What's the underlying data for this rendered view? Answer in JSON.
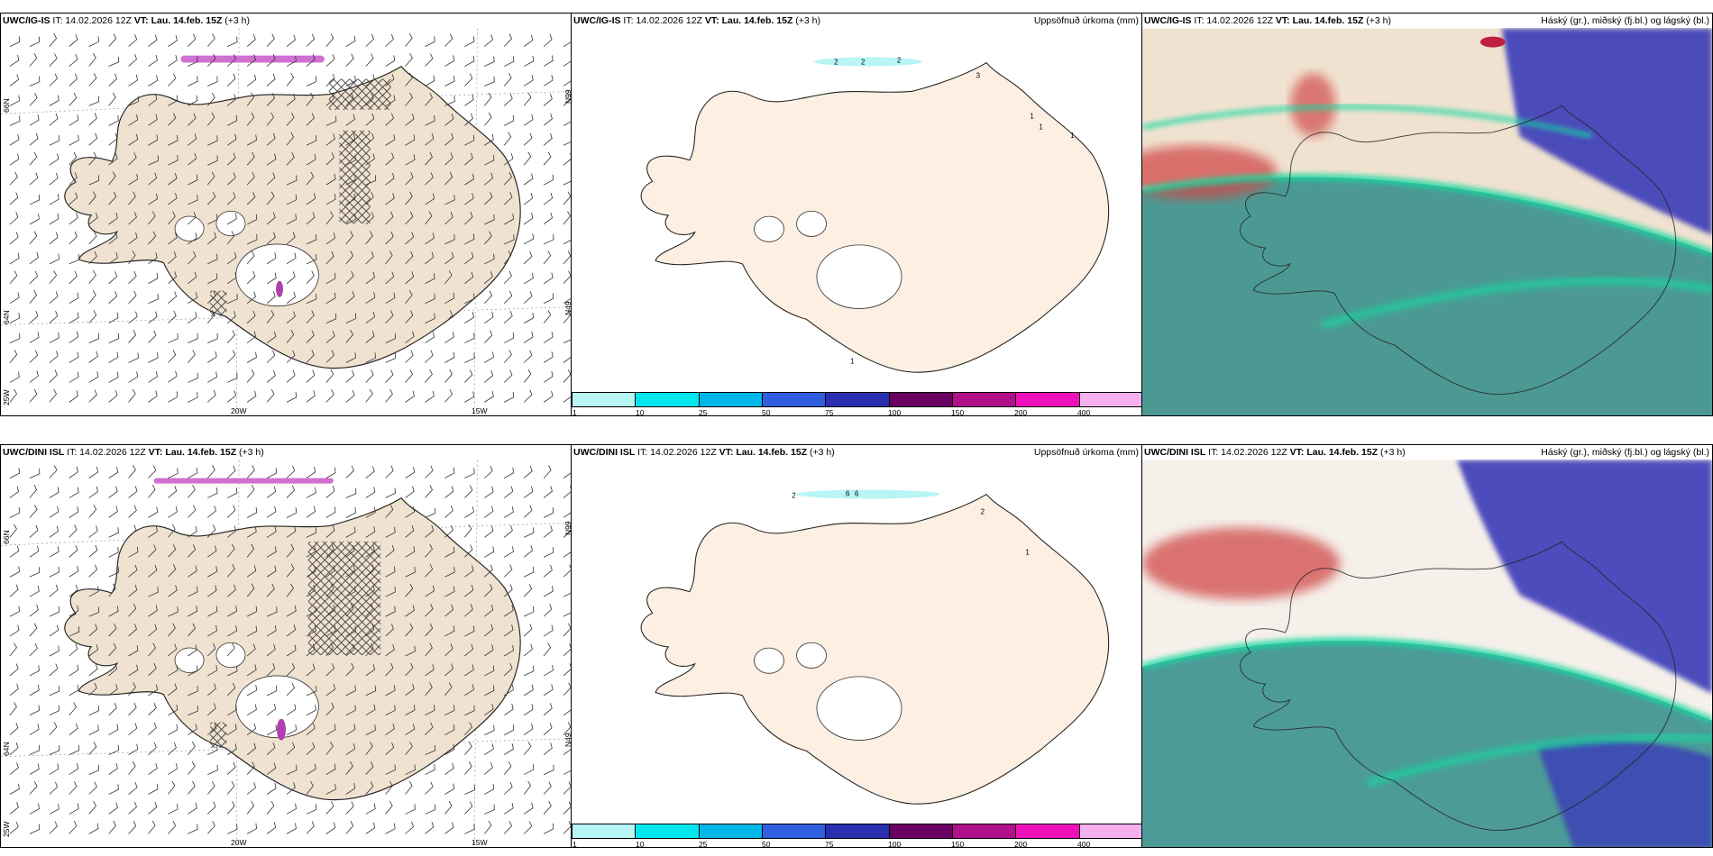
{
  "panels": [
    {
      "model": "UWC/IG-IS",
      "it": "IT: 14.02.2026 12Z",
      "vt": "VT: Lau. 14.feb. 15Z",
      "lead": "(+3 h)",
      "right_title": "",
      "lat_labels": [
        "66N",
        "64N"
      ],
      "lat_right_labels": [
        "N99",
        "N49"
      ],
      "lon_labels": [
        "20W",
        "15W"
      ],
      "lon_left_label": "25W"
    },
    {
      "model": "UWC/IG-IS",
      "it": "IT: 14.02.2026 12Z",
      "vt": "VT: Lau. 14.feb. 15Z",
      "lead": "(+3 h)",
      "right_title": "Uppsöfnuð úrkoma (mm)",
      "contour_labels": [
        "2",
        "2",
        "2",
        "1",
        "1",
        "1",
        "3",
        "1"
      ]
    },
    {
      "model": "UWC/IG-IS",
      "it": "IT: 14.02.2026 12Z",
      "vt": "VT: Lau. 14.feb. 15Z",
      "lead": "(+3 h)",
      "right_title": "Háský (gr.), miðský (fj.bl.) og lágský (bl.)"
    },
    {
      "model": "UWC/DINI ISL",
      "it": "IT: 14.02.2026 12Z",
      "vt": "VT: Lau. 14.feb. 15Z",
      "lead": "(+3 h)",
      "right_title": "",
      "lat_labels": [
        "66N",
        "64N"
      ],
      "lat_right_labels": [
        "N99",
        "N49"
      ],
      "lon_labels": [
        "20W",
        "15W"
      ],
      "lon_left_label": "25W"
    },
    {
      "model": "UWC/DINI ISL",
      "it": "IT: 14.02.2026 12Z",
      "vt": "VT: Lau. 14.feb. 15Z",
      "lead": "(+3 h)",
      "right_title": "Uppsöfnuð úrkoma (mm)",
      "contour_labels": [
        "2",
        "6",
        "6",
        "2",
        "1"
      ]
    },
    {
      "model": "UWC/DINI ISL",
      "it": "IT: 14.02.2026 12Z",
      "vt": "VT: Lau. 14.feb. 15Z",
      "lead": "(+3 h)",
      "right_title": "Háský (gr.), miðský (fj.bl.) og lágský (bl.)"
    }
  ],
  "legend": {
    "ticks": [
      "1",
      "10",
      "25",
      "50",
      "75",
      "100",
      "150",
      "200",
      "400"
    ],
    "colors": [
      "#b8f5f5",
      "#00e8ee",
      "#00b8e8",
      "#2f5fe0",
      "#2a2fb0",
      "#6a0060",
      "#b0108a",
      "#ee10b8",
      "#f5b0f0"
    ]
  },
  "colors": {
    "land": "#f0e2d0",
    "land_precip": "#fdefe2",
    "low_cloud": "#2f8c88",
    "mid_cloud": "#3a3ab8",
    "high_cloud": "#d04848",
    "cloud_edge": "#18d8a0"
  }
}
